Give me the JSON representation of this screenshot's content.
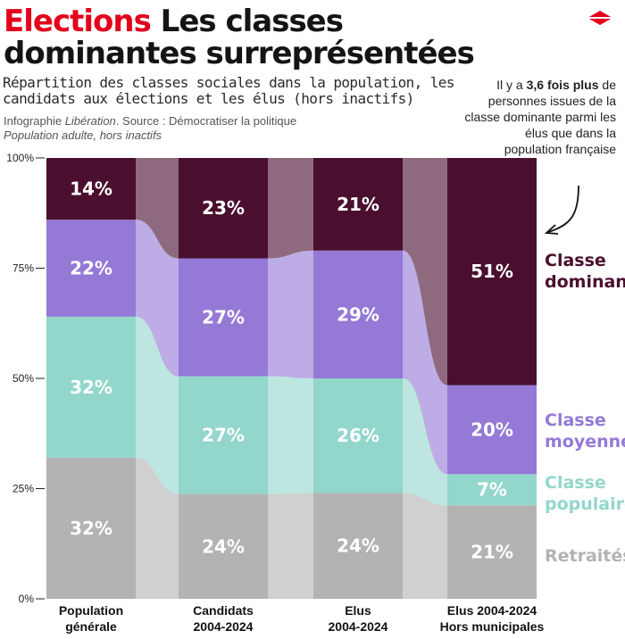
{
  "header": {
    "title_kicker": "Elections",
    "title_main": "Les classes dominantes surreprésentées",
    "subtitle": "Répartition des classes sociales dans la population, les candidats aux élections et les élus (hors inactifs)",
    "source_prefix": "Infographie",
    "source_credit": "Libération",
    "source_rest": ". Source : Démocratiser la politique",
    "note": "Population adulte, hors inactifs"
  },
  "callout": {
    "text_before": "Il y a",
    "text_bold": "3,6 fois plus",
    "text_after": "de personnes issues de la classe dominante parmi les élus que dans la population française"
  },
  "colors": {
    "dominante": "#4a0f2e",
    "moyenne": "#9479d6",
    "populaire": "#93d6cb",
    "retraites": "#b3b3b3",
    "accent": "#e3001b"
  },
  "chart_data": {
    "type": "bar",
    "stacked": true,
    "orientation": "vertical",
    "normalized": true,
    "categories": [
      "Population générale",
      "Candidats 2004-2024",
      "Elus 2004-2024",
      "Elus 2004-2024 Hors municipales"
    ],
    "category_lines": [
      [
        "Population",
        "générale"
      ],
      [
        "Candidats",
        "2004-2024"
      ],
      [
        "Elus",
        "2004-2024"
      ],
      [
        "Elus 2004-2024",
        "Hors municipales"
      ]
    ],
    "series": [
      {
        "name": "Retraités",
        "key": "retraites",
        "values": [
          32,
          24,
          24,
          21
        ],
        "labels": [
          "32%",
          "24%",
          "24%",
          "21%"
        ]
      },
      {
        "name": "Classe populaire",
        "key": "populaire",
        "values": [
          32,
          27,
          26,
          7
        ],
        "labels": [
          "32%",
          "27%",
          "26%",
          "7%"
        ]
      },
      {
        "name": "Classe moyenne",
        "key": "moyenne",
        "values": [
          22,
          27,
          29,
          20
        ],
        "labels": [
          "22%",
          "27%",
          "29%",
          "20%"
        ]
      },
      {
        "name": "Classe dominante",
        "key": "dominante",
        "values": [
          14,
          23,
          21,
          51
        ],
        "labels": [
          "14%",
          "23%",
          "21%",
          "51%"
        ]
      }
    ],
    "legend": [
      {
        "key": "dominante",
        "lines": [
          "Classe",
          "dominante"
        ]
      },
      {
        "key": "moyenne",
        "lines": [
          "Classe",
          "moyenne"
        ]
      },
      {
        "key": "populaire",
        "lines": [
          "Classe",
          "populaire"
        ]
      },
      {
        "key": "retraites",
        "lines": [
          "Retraités"
        ]
      }
    ],
    "legend_placement": "right",
    "yticks": [
      0,
      25,
      50,
      75,
      100
    ],
    "ytick_labels": [
      "0%",
      "25%",
      "50%",
      "75%",
      "100%"
    ],
    "ylim": [
      0,
      100
    ],
    "grid": false
  }
}
